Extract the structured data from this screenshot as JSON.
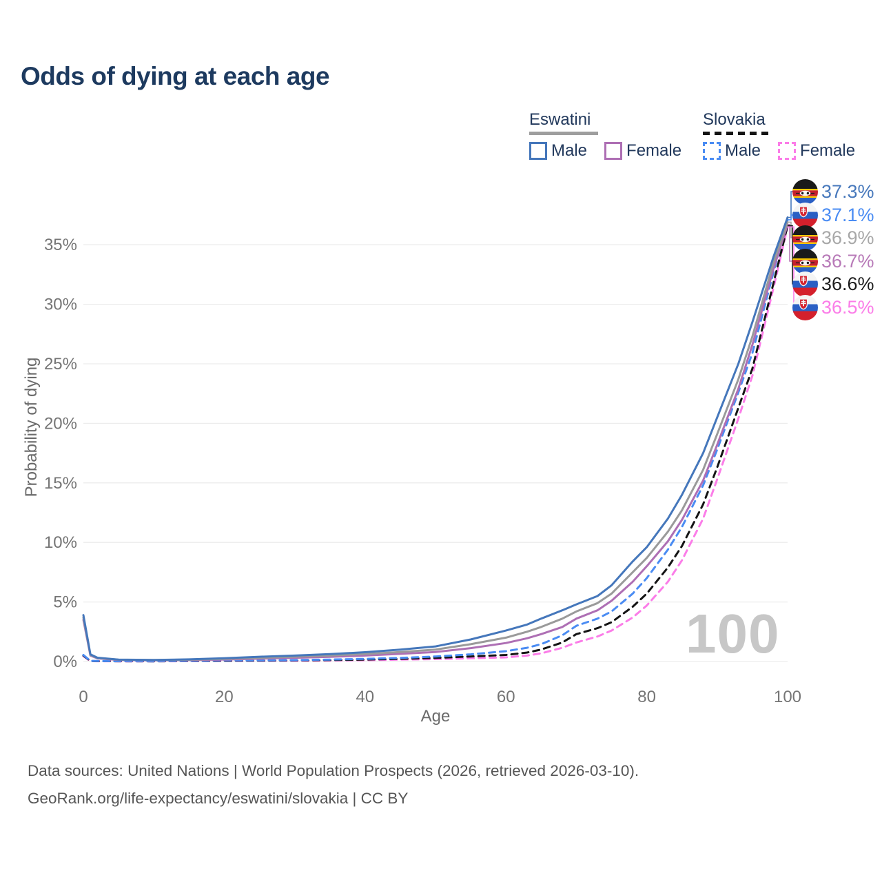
{
  "title": "Odds of dying at each age",
  "watermark": "100",
  "legend": {
    "groups": [
      {
        "name": "Eswatini",
        "line_style": "solid",
        "underline_color": "#9e9e9e",
        "items": [
          {
            "label": "Male",
            "color": "#4577bb",
            "dashed": false
          },
          {
            "label": "Female",
            "color": "#ae6fb4",
            "dashed": false
          }
        ]
      },
      {
        "name": "Slovakia",
        "line_style": "dashed",
        "underline_color": "#141414",
        "items": [
          {
            "label": "Male",
            "color": "#4a8cf3",
            "dashed": true
          },
          {
            "label": "Female",
            "color": "#fb7de8",
            "dashed": true
          }
        ]
      }
    ]
  },
  "end_labels": [
    {
      "flag": "eswatini",
      "value": "37.3%",
      "color": "#4879bc",
      "series": "esw_m"
    },
    {
      "flag": "slovakia",
      "value": "37.1%",
      "color": "#4a8cf3",
      "series": "svk_m"
    },
    {
      "flag": "eswatini",
      "value": "36.9%",
      "color": "#a8a8a8",
      "series": "esw_t"
    },
    {
      "flag": "eswatini",
      "value": "36.7%",
      "color": "#b87ab8",
      "series": "esw_f"
    },
    {
      "flag": "slovakia",
      "value": "36.6%",
      "color": "#1c1c1c",
      "series": "svk_t"
    },
    {
      "flag": "slovakia",
      "value": "36.5%",
      "color": "#fb7de8",
      "series": "svk_f"
    }
  ],
  "footer": {
    "line1": "Data sources: United Nations | World Population Prospects (2026, retrieved 2026-03-10).",
    "line2": "GeoRank.org/life-expectancy/eswatini/slovakia | CC BY"
  },
  "chart_data": {
    "type": "line",
    "title": "Odds of dying at each age",
    "xlabel": "Age",
    "ylabel": "Probability of dying",
    "xlim": [
      0,
      100
    ],
    "ylim": [
      0,
      37.5
    ],
    "x_ticks": [
      0,
      20,
      40,
      60,
      80,
      100
    ],
    "y_tick_values": [
      0,
      5,
      10,
      15,
      20,
      25,
      30,
      35
    ],
    "y_ticks": [
      "0%",
      "5%",
      "10%",
      "15%",
      "20%",
      "25%",
      "30%",
      "35%"
    ],
    "grid": "horizontal",
    "grid_color": "#ececec",
    "legend_position": "top-right",
    "ages": [
      0,
      1,
      2,
      5,
      10,
      15,
      20,
      25,
      30,
      35,
      40,
      45,
      50,
      55,
      60,
      63,
      65,
      68,
      70,
      73,
      75,
      78,
      80,
      83,
      85,
      88,
      90,
      93,
      95,
      98,
      100
    ],
    "series": [
      {
        "id": "esw_m",
        "name": "Eswatini Male",
        "country": "Eswatini",
        "sex": "male",
        "style": "solid",
        "color": "#4577bb",
        "end_label": "37.3%",
        "values": [
          3.9,
          0.6,
          0.32,
          0.16,
          0.13,
          0.18,
          0.28,
          0.4,
          0.5,
          0.62,
          0.78,
          1.0,
          1.27,
          1.85,
          2.6,
          3.1,
          3.6,
          4.3,
          4.8,
          5.5,
          6.4,
          8.4,
          9.6,
          12.0,
          14.0,
          17.5,
          20.5,
          25.0,
          28.5,
          34.0,
          37.3
        ]
      },
      {
        "id": "svk_m",
        "name": "Slovakia Male",
        "country": "Slovakia",
        "sex": "male",
        "style": "dashed",
        "color": "#4a8cf3",
        "end_label": "37.1%",
        "values": [
          0.55,
          0.05,
          0.04,
          0.03,
          0.02,
          0.05,
          0.09,
          0.1,
          0.12,
          0.16,
          0.22,
          0.3,
          0.42,
          0.6,
          0.87,
          1.15,
          1.45,
          2.2,
          3.0,
          3.6,
          4.2,
          5.7,
          7.0,
          9.4,
          11.3,
          14.8,
          17.8,
          22.6,
          25.9,
          32.7,
          37.1
        ]
      },
      {
        "id": "esw_t",
        "name": "Eswatini",
        "country": "Eswatini",
        "sex": "both",
        "style": "solid",
        "color": "#9a9a9a",
        "end_label": "36.9%",
        "values": [
          3.7,
          0.55,
          0.29,
          0.15,
          0.12,
          0.15,
          0.22,
          0.31,
          0.4,
          0.5,
          0.63,
          0.8,
          1.0,
          1.45,
          2.0,
          2.5,
          2.9,
          3.6,
          4.2,
          4.9,
          5.7,
          7.5,
          8.7,
          10.9,
          12.7,
          16.1,
          19.1,
          23.7,
          27.3,
          33.5,
          36.9
        ]
      },
      {
        "id": "esw_f",
        "name": "Eswatini Female",
        "country": "Eswatini",
        "sex": "female",
        "style": "solid",
        "color": "#ae6fb4",
        "end_label": "36.7%",
        "values": [
          3.5,
          0.5,
          0.26,
          0.13,
          0.1,
          0.12,
          0.17,
          0.24,
          0.31,
          0.39,
          0.5,
          0.64,
          0.8,
          1.12,
          1.55,
          1.95,
          2.3,
          2.9,
          3.6,
          4.3,
          5.1,
          6.7,
          8.0,
          10.1,
          11.9,
          15.2,
          18.2,
          22.9,
          26.6,
          33.0,
          36.7
        ]
      },
      {
        "id": "svk_t",
        "name": "Slovakia",
        "country": "Slovakia",
        "sex": "both",
        "style": "dashed",
        "color": "#141414",
        "end_label": "36.6%",
        "values": [
          0.5,
          0.04,
          0.03,
          0.025,
          0.018,
          0.04,
          0.06,
          0.07,
          0.09,
          0.12,
          0.16,
          0.22,
          0.3,
          0.42,
          0.55,
          0.75,
          1.0,
          1.6,
          2.3,
          2.8,
          3.3,
          4.6,
          5.7,
          7.9,
          9.7,
          13.2,
          16.3,
          21.3,
          24.6,
          31.8,
          36.6
        ]
      },
      {
        "id": "svk_f",
        "name": "Slovakia Female",
        "country": "Slovakia",
        "sex": "female",
        "style": "dashed",
        "color": "#fb7de8",
        "end_label": "36.5%",
        "values": [
          0.45,
          0.035,
          0.025,
          0.02,
          0.015,
          0.03,
          0.04,
          0.05,
          0.06,
          0.08,
          0.11,
          0.16,
          0.2,
          0.27,
          0.35,
          0.5,
          0.68,
          1.15,
          1.6,
          2.1,
          2.6,
          3.7,
          4.7,
          6.7,
          8.5,
          12.0,
          15.3,
          20.4,
          24.0,
          31.4,
          36.5
        ]
      }
    ]
  }
}
